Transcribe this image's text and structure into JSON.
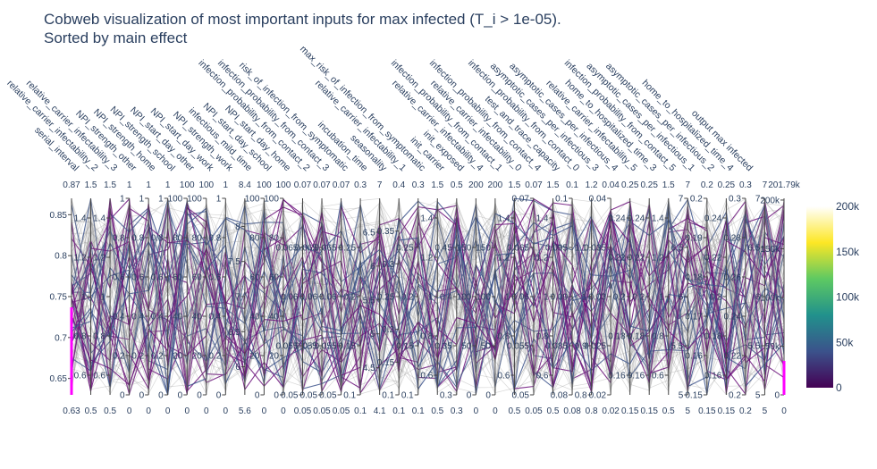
{
  "chart_data": {
    "type": "parallel_coordinates",
    "title_lines": [
      "Cobweb visualization of most important inputs for max infected (T_i > 1e-05).",
      "Sorted by main effect"
    ],
    "dimensions": [
      {
        "label": "serial_interval",
        "range": [
          0.63,
          0.87
        ],
        "ticks": [
          "0.85",
          "0.8",
          "0.75",
          "0.7",
          "0.65"
        ],
        "tick_values": [
          0.85,
          0.8,
          0.75,
          0.7,
          0.65
        ],
        "range_labels": [
          "0.63",
          "0.87"
        ]
      },
      {
        "label": "relative_carrier_infectability_2",
        "range": [
          0.5,
          1.5
        ],
        "ticks": [
          "1.4",
          "1.2",
          "1",
          "0.8",
          "0.6"
        ],
        "tick_values": [
          1.4,
          1.2,
          1.0,
          0.8,
          0.6
        ],
        "range_labels": [
          "0.5",
          "1.5"
        ]
      },
      {
        "label": "relative_carrier_infectability_3",
        "range": [
          0.5,
          1.5
        ],
        "ticks": [
          "1.4",
          "1.2",
          "1",
          "0.8",
          "0.6"
        ],
        "tick_values": [
          1.4,
          1.2,
          1.0,
          0.8,
          0.6
        ],
        "range_labels": [
          "0.5",
          "1.5"
        ]
      },
      {
        "label": "NPI_strength_other",
        "range": [
          0,
          1
        ],
        "ticks": [
          "1",
          "0.8",
          "0.6",
          "0.4",
          "0.2",
          "0"
        ],
        "tick_values": [
          1,
          0.8,
          0.6,
          0.4,
          0.2,
          0
        ],
        "range_labels": [
          "0",
          "1"
        ]
      },
      {
        "label": "NPI_strength_home",
        "range": [
          0,
          1
        ],
        "ticks": [
          "1",
          "0.8",
          "0.6",
          "0.4",
          "0.2",
          "0"
        ],
        "tick_values": [
          1,
          0.8,
          0.6,
          0.4,
          0.2,
          0
        ],
        "range_labels": [
          "0",
          "1"
        ]
      },
      {
        "label": "NPI_strength_school",
        "range": [
          0,
          1
        ],
        "ticks": [
          "1",
          "0.8",
          "0.6",
          "0.4",
          "0.2",
          "0"
        ],
        "tick_values": [
          1,
          0.8,
          0.6,
          0.4,
          0.2,
          0
        ],
        "range_labels": [
          "0",
          "1"
        ]
      },
      {
        "label": "NPI_start_day_other",
        "range": [
          0,
          100
        ],
        "ticks": [
          "100",
          "80",
          "60",
          "40",
          "20",
          "0"
        ],
        "tick_values": [
          100,
          80,
          60,
          40,
          20,
          0
        ],
        "range_labels": [
          "0",
          "100"
        ]
      },
      {
        "label": "NPI_start_day_work",
        "range": [
          0,
          100
        ],
        "ticks": [
          "100",
          "80",
          "60",
          "40",
          "20",
          "0"
        ],
        "tick_values": [
          100,
          80,
          60,
          40,
          20,
          0
        ],
        "range_labels": [
          "0",
          "100"
        ]
      },
      {
        "label": "NPI_strength_work",
        "range": [
          0,
          1
        ],
        "ticks": [
          "1",
          "0.8",
          "0.6",
          "0.4",
          "0.2",
          "0"
        ],
        "tick_values": [
          1,
          0.8,
          0.6,
          0.4,
          0.2,
          0
        ],
        "range_labels": [
          "0",
          "1"
        ]
      },
      {
        "label": "infectious_mild_time",
        "range": [
          5.6,
          8.4
        ],
        "ticks": [
          "8",
          "7.5",
          "7",
          "6.5",
          "6"
        ],
        "tick_values": [
          8,
          7.5,
          7,
          6.5,
          6
        ],
        "range_labels": [
          "5.6",
          "8.4"
        ]
      },
      {
        "label": "NPI_start_day_school",
        "range": [
          0,
          100
        ],
        "ticks": [
          "100",
          "80",
          "60",
          "40",
          "20",
          "0"
        ],
        "tick_values": [
          100,
          80,
          60,
          40,
          20,
          0
        ],
        "range_labels": [
          "0",
          "100"
        ]
      },
      {
        "label": "NPI_start_day_home",
        "range": [
          0,
          100
        ],
        "ticks": [
          "100",
          "80",
          "60",
          "40",
          "20",
          "0"
        ],
        "tick_values": [
          100,
          80,
          60,
          40,
          20,
          0
        ],
        "range_labels": [
          "0",
          "100"
        ]
      },
      {
        "label": "infection_probability_from_contact_2",
        "range": [
          0.05,
          0.07
        ],
        "ticks": [
          "0.065",
          "0.06",
          "0.055",
          "0.05"
        ],
        "tick_values": [
          0.065,
          0.06,
          0.055,
          0.05
        ],
        "range_labels": [
          "0.05",
          "0.07"
        ]
      },
      {
        "label": "infection_probability_from_contact_3",
        "range": [
          0.05,
          0.07
        ],
        "ticks": [
          "0.065",
          "0.06",
          "0.055",
          "0.05"
        ],
        "tick_values": [
          0.065,
          0.06,
          0.055,
          0.05
        ],
        "range_labels": [
          "0.05",
          "0.07"
        ]
      },
      {
        "label": "risk_of_infection_from_symptomatic",
        "range": [
          0.05,
          0.07
        ],
        "ticks": [
          "0.065",
          "0.06",
          "0.055",
          "0.05"
        ],
        "tick_values": [
          0.065,
          0.06,
          0.055,
          0.05
        ],
        "range_labels": [
          "0.05",
          "0.07"
        ]
      },
      {
        "label": "incubation_time",
        "range": [
          0.1,
          0.3
        ],
        "ticks": [
          "0.25",
          "0.2",
          "0.15",
          "0.1"
        ],
        "tick_values": [
          0.25,
          0.2,
          0.15,
          0.1
        ],
        "range_labels": [
          "0.1",
          "0.3"
        ]
      },
      {
        "label": "seasonality",
        "range": [
          4.1,
          7
        ],
        "ticks": [
          "6.5",
          "6",
          "5.5",
          "5",
          "4.5"
        ],
        "tick_values": [
          6.5,
          6,
          5.5,
          5,
          4.5
        ],
        "range_labels": [
          "4.1",
          "7"
        ]
      },
      {
        "label": "relative_carrier_infectability_1",
        "range": [
          0.1,
          0.4
        ],
        "ticks": [
          "0.35",
          "0.3",
          "0.25",
          "0.2",
          "0.15",
          "0.1"
        ],
        "tick_values": [
          0.35,
          0.3,
          0.25,
          0.2,
          0.15,
          0.1
        ],
        "range_labels": [
          "0.1",
          "0.4"
        ]
      },
      {
        "label": "max_risk_of_infection_from_symptomatic",
        "range": [
          0.1,
          0.3
        ],
        "ticks": [
          "0.25",
          "0.2",
          "0.15",
          "0.1"
        ],
        "tick_values": [
          0.25,
          0.2,
          0.15,
          0.1
        ],
        "range_labels": [
          "0.1",
          "0.3"
        ]
      },
      {
        "label": "init_carrier",
        "range": [
          0.5,
          1.5
        ],
        "ticks": [
          "1.4",
          "1.2",
          "1",
          "0.8",
          "0.6"
        ],
        "tick_values": [
          1.4,
          1.2,
          1.0,
          0.8,
          0.6
        ],
        "range_labels": [
          "0.5",
          "1.5"
        ]
      },
      {
        "label": "init_exposed",
        "range": [
          0.3,
          0.5
        ],
        "ticks": [
          "0.45",
          "0.4",
          "0.35",
          "0.3"
        ],
        "tick_values": [
          0.45,
          0.4,
          0.35,
          0.3
        ],
        "range_labels": [
          "0.3",
          "0.5"
        ]
      },
      {
        "label": "relative_carrier_infectability_4",
        "range": [
          0,
          200
        ],
        "ticks": [
          "150",
          "100",
          "50",
          "0"
        ],
        "tick_values": [
          150,
          100,
          50,
          0
        ],
        "range_labels": [
          "0",
          "200"
        ]
      },
      {
        "label": "infection_probability_from_contact_1",
        "range": [
          0,
          200
        ],
        "ticks": [
          "150",
          "100",
          "50",
          "0"
        ],
        "tick_values": [
          150,
          100,
          50,
          0
        ],
        "range_labels": [
          "0",
          "200"
        ]
      },
      {
        "label": "relative_carrier_infectability_0",
        "range": [
          0.5,
          1.5
        ],
        "ticks": [
          "1.4",
          "1.2",
          "1",
          "0.8",
          "0.6"
        ],
        "tick_values": [
          1.4,
          1.2,
          1.0,
          0.8,
          0.6
        ],
        "range_labels": [
          "0.5",
          "1.5"
        ]
      },
      {
        "label": "infection_probability_from_contact_4",
        "range": [
          0.05,
          0.07
        ],
        "ticks": [
          "0.07",
          "0.065",
          "0.06",
          "0.055",
          "0.05"
        ],
        "tick_values": [
          0.07,
          0.065,
          0.06,
          0.055,
          0.05
        ],
        "range_labels": [
          "0.05",
          "0.07"
        ]
      },
      {
        "label": "test_and_trace_capacity",
        "range": [
          0.5,
          1.5
        ],
        "ticks": [
          "1.4",
          "1.2",
          "1",
          "0.8",
          "0.6"
        ],
        "tick_values": [
          1.4,
          1.2,
          1.0,
          0.8,
          0.6
        ],
        "range_labels": [
          "0.5",
          "1.5"
        ]
      },
      {
        "label": "infection_probability_from_contact_0",
        "range": [
          0.08,
          0.1
        ],
        "ticks": [
          "0.1",
          "0.095",
          "0.09",
          "0.085",
          "0.08"
        ],
        "tick_values": [
          0.1,
          0.095,
          0.09,
          0.085,
          0.08
        ],
        "range_labels": [
          "0.08",
          "0.1"
        ]
      },
      {
        "label": "asymptotic_cases_per_infectious_3",
        "range": [
          0.8,
          1.2
        ],
        "ticks": [
          "1.1",
          "1",
          "0.9",
          "0.8"
        ],
        "tick_values": [
          1.1,
          1.0,
          0.9,
          0.8
        ],
        "range_labels": [
          "0.8",
          "1.2"
        ]
      },
      {
        "label": "asymptotic_cases_per_infectious_4",
        "range": [
          0.02,
          0.04
        ],
        "ticks": [
          "0.04",
          "0.035",
          "0.03",
          "0.025",
          "0.02"
        ],
        "tick_values": [
          0.04,
          0.035,
          0.03,
          0.025,
          0.02
        ],
        "range_labels": [
          "0.02",
          "0.04"
        ]
      },
      {
        "label": "relative_carrier_infectability_5",
        "range": [
          0.15,
          0.25
        ],
        "ticks": [
          "0.24",
          "0.22",
          "0.2",
          "0.18",
          "0.16"
        ],
        "tick_values": [
          0.24,
          0.22,
          0.2,
          0.18,
          0.16
        ],
        "range_labels": [
          "0.15",
          "0.25"
        ]
      },
      {
        "label": "home_to_hospitalized_time_3",
        "range": [
          0.15,
          0.25
        ],
        "ticks": [
          "0.24",
          "0.22",
          "0.2",
          "0.18",
          "0.16"
        ],
        "tick_values": [
          0.24,
          0.22,
          0.2,
          0.18,
          0.16
        ],
        "range_labels": [
          "0.15",
          "0.25"
        ]
      },
      {
        "label": "infection_probability_from_contact_5",
        "range": [
          0.5,
          1.5
        ],
        "ticks": [
          "1.4",
          "1.2",
          "1",
          "0.8",
          "0.6"
        ],
        "tick_values": [
          1.4,
          1.2,
          1.0,
          0.8,
          0.6
        ],
        "range_labels": [
          "0.5",
          "1.5"
        ]
      },
      {
        "label": "asymptotic_cases_per_infectious_1",
        "range": [
          5,
          7
        ],
        "ticks": [
          "7",
          "6.5",
          "6",
          "5.5",
          "5"
        ],
        "tick_values": [
          7,
          6.5,
          6,
          5.5,
          5
        ],
        "range_labels": [
          "5",
          "7"
        ]
      },
      {
        "label": "asymptotic_cases_per_infectious_2",
        "range": [
          0.15,
          0.2
        ],
        "ticks": [
          "0.2",
          "0.19",
          "0.18",
          "0.17",
          "0.16",
          "0.15"
        ],
        "tick_values": [
          0.2,
          0.19,
          0.18,
          0.17,
          0.16,
          0.15
        ],
        "range_labels": [
          "0.15",
          "0.2"
        ]
      },
      {
        "label": "home_to_hospitalized_time_4",
        "range": [
          0.15,
          0.25
        ],
        "ticks": [
          "0.24",
          "0.22",
          "0.2",
          "0.18",
          "0.16"
        ],
        "tick_values": [
          0.24,
          0.22,
          0.2,
          0.18,
          0.16
        ],
        "range_labels": [
          "0.15",
          "0.25"
        ]
      },
      {
        "label": "output max infected",
        "range": [
          0.2,
          0.3
        ],
        "ticks": [
          "0.3",
          "0.28",
          "0.26",
          "0.24",
          "0.22",
          "0.2"
        ],
        "tick_values": [
          0.3,
          0.28,
          0.26,
          0.24,
          0.22,
          0.2
        ],
        "range_labels": [
          "0.2",
          "0.3"
        ]
      },
      {
        "label": "",
        "range": [
          5,
          7
        ],
        "ticks": [
          "7",
          "6.5",
          "6",
          "5.5",
          "5"
        ],
        "tick_values": [
          7,
          6.5,
          6,
          5.5,
          5
        ],
        "range_labels": [
          "5",
          "7"
        ]
      },
      {
        "label": "",
        "range": [
          0,
          201790
        ],
        "ticks": [
          "200k",
          "150k",
          "100k",
          "50k",
          "0"
        ],
        "tick_values": [
          200000,
          150000,
          100000,
          50000,
          0
        ],
        "range_labels": [
          "0",
          "201.79k"
        ]
      }
    ],
    "colorbar": {
      "ticks": [
        "200k",
        "150k",
        "100k",
        "50k",
        "0"
      ],
      "tick_values": [
        200000,
        150000,
        100000,
        50000,
        0
      ],
      "range": [
        0,
        200000
      ],
      "colorscale": [
        "#440154",
        "#3b528b",
        "#21918c",
        "#5ec962",
        "#fde725",
        "#ffffff"
      ]
    },
    "highlight_color": "#ff00ff",
    "line_colors": {
      "low": "#6a0f7a",
      "mid": "#3b528b",
      "background": "#8c8c8c"
    }
  }
}
